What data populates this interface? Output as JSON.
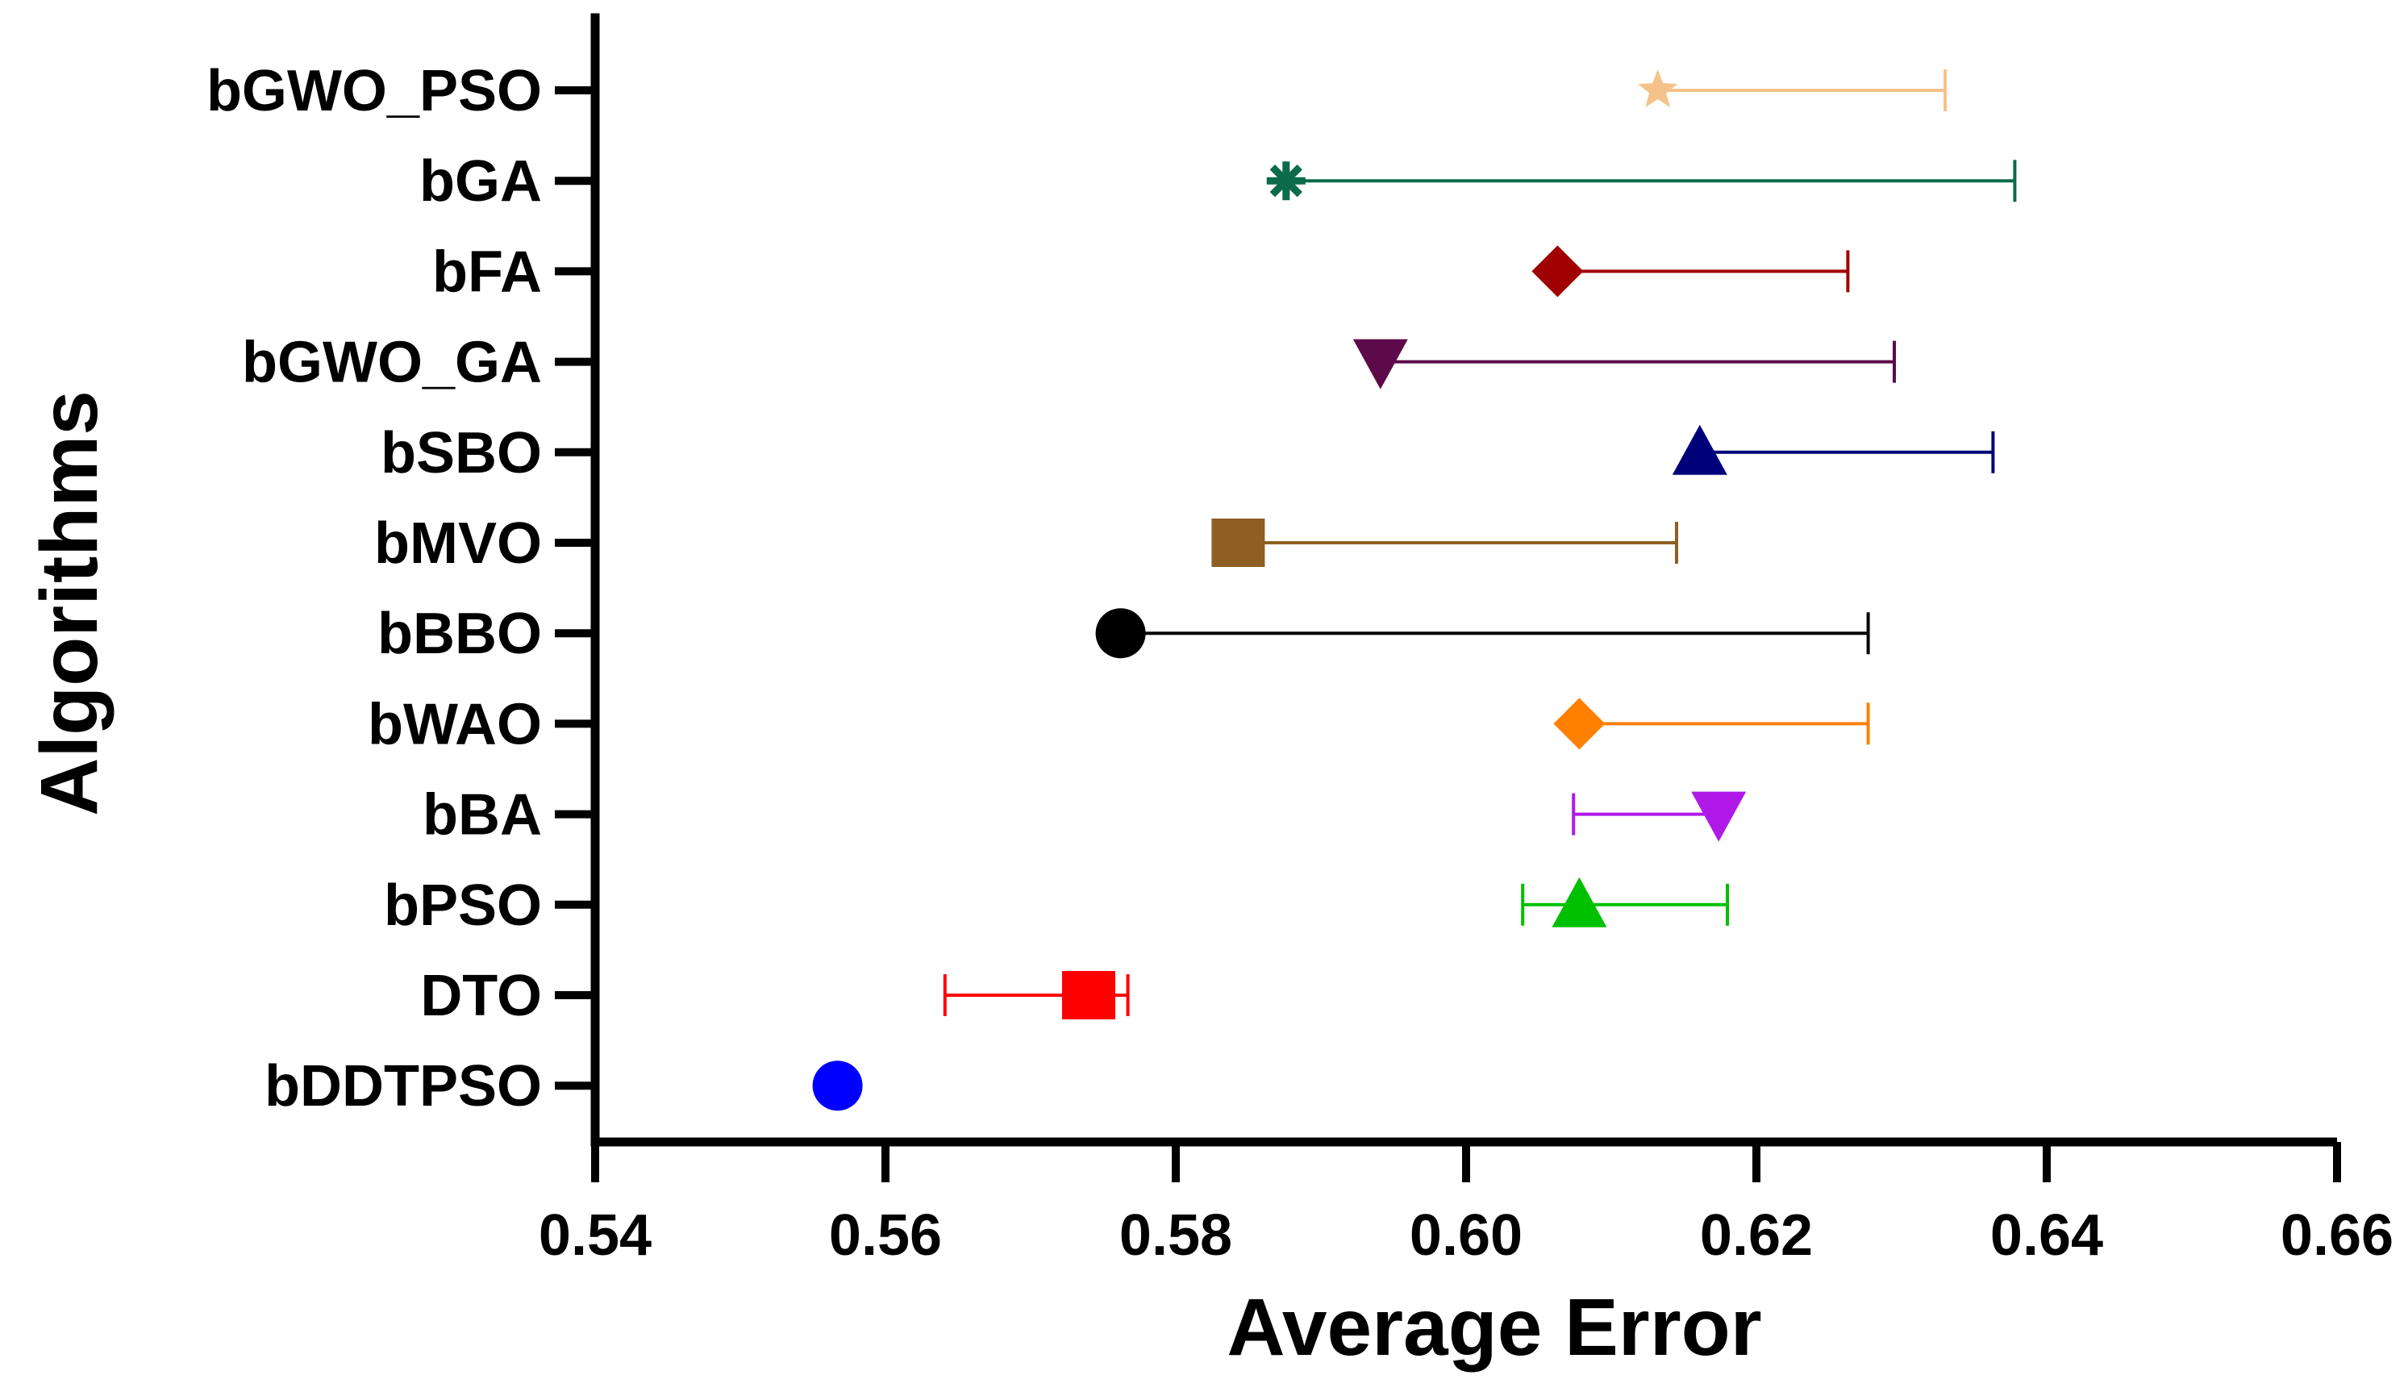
{
  "chart_data": {
    "type": "scatter",
    "subtype": "horizontal-error-bar",
    "title": "",
    "xlabel": "Average Error",
    "ylabel": "Algorithms",
    "xlim": [
      0.54,
      0.66
    ],
    "xticks": [
      0.54,
      0.56,
      0.58,
      0.6,
      0.62,
      0.64,
      0.66
    ],
    "xtick_labels": [
      "0.54",
      "0.56",
      "0.58",
      "0.60",
      "0.62",
      "0.64",
      "0.66"
    ],
    "grid": false,
    "legend": "none",
    "categories": [
      "bGWO_PSO",
      "bGA",
      "bFA",
      "bGWO_GA",
      "bSBO",
      "bMVO",
      "bBBO",
      "bWAO",
      "bBA",
      "bPSO",
      "DTO",
      "bDDTPSO"
    ],
    "series": [
      {
        "name": "bGWO_PSO",
        "value": 0.6132,
        "err_low": 0.6132,
        "err_high": 0.633,
        "marker": "star",
        "color": "#F5C28A"
      },
      {
        "name": "bGA",
        "value": 0.5876,
        "err_low": 0.5876,
        "err_high": 0.6378,
        "marker": "asterisk",
        "color": "#0B6B4A"
      },
      {
        "name": "bFA",
        "value": 0.6063,
        "err_low": 0.6063,
        "err_high": 0.6263,
        "marker": "diamond",
        "color": "#A00000"
      },
      {
        "name": "bGWO_GA",
        "value": 0.5941,
        "err_low": 0.5941,
        "err_high": 0.6295,
        "marker": "triangle-down",
        "color": "#5C0A4A"
      },
      {
        "name": "bSBO",
        "value": 0.6161,
        "err_low": 0.6161,
        "err_high": 0.6363,
        "marker": "triangle-up",
        "color": "#00007A"
      },
      {
        "name": "bMVO",
        "value": 0.5843,
        "err_low": 0.5843,
        "err_high": 0.6145,
        "marker": "square",
        "color": "#8E5E22"
      },
      {
        "name": "bBBO",
        "value": 0.5762,
        "err_low": 0.5762,
        "err_high": 0.6277,
        "marker": "circle",
        "color": "#000000"
      },
      {
        "name": "bWAO",
        "value": 0.6078,
        "err_low": 0.6078,
        "err_high": 0.6277,
        "marker": "diamond",
        "color": "#FF8000"
      },
      {
        "name": "bBA",
        "value": 0.6174,
        "err_low": 0.6074,
        "err_high": 0.6174,
        "marker": "triangle-down",
        "color": "#B01AE8"
      },
      {
        "name": "bPSO",
        "value": 0.6078,
        "err_low": 0.6039,
        "err_high": 0.618,
        "marker": "triangle-up",
        "color": "#00C000"
      },
      {
        "name": "DTO",
        "value": 0.574,
        "err_low": 0.5641,
        "err_high": 0.5767,
        "marker": "square",
        "color": "#FF0000"
      },
      {
        "name": "bDDTPSO",
        "value": 0.5567,
        "err_low": 0.5567,
        "err_high": 0.5567,
        "marker": "circle",
        "color": "#0000FF"
      }
    ]
  }
}
